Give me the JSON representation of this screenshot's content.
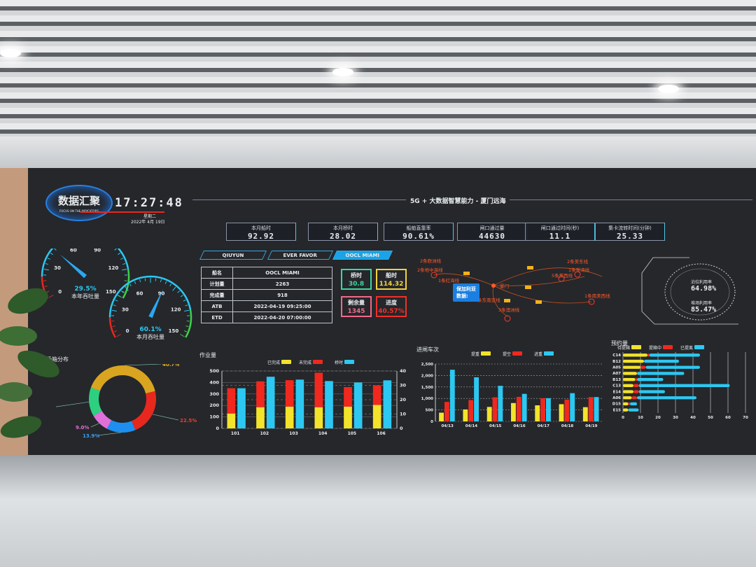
{
  "header": {
    "logo_title": "数据汇聚",
    "logo_subtitle": "FOCUS ON THE INDICATORS",
    "clock": "17:27:48",
    "weekday": "星期二",
    "date": "2022年 4月 19日",
    "title": "5G + 大数据智慧能力 - 厦门远海"
  },
  "kpis": [
    {
      "label": "本月船时",
      "value": "92.92"
    },
    {
      "label": "本月桥时",
      "value": "28.02"
    },
    {
      "label": "船舶直靠率",
      "value": "90.61%"
    },
    {
      "label": "闸口通过量",
      "value": "44630"
    },
    {
      "label": "闸口通过时间(秒)",
      "value": "11.1"
    },
    {
      "label": "集卡流转时间(分钟)",
      "value": "25.33"
    }
  ],
  "ship_tabs": [
    {
      "label": "QIUYUN",
      "active": false
    },
    {
      "label": "EVER FAVOR",
      "active": false
    },
    {
      "label": "OOCL MIAMI",
      "active": true
    }
  ],
  "ship_table": [
    {
      "k": "船名",
      "v": "OOCL MIAMI"
    },
    {
      "k": "计划量",
      "v": "2263"
    },
    {
      "k": "完成量",
      "v": "918"
    },
    {
      "k": "ATB",
      "v": "2022-04-19 09:25:00"
    },
    {
      "k": "ETD",
      "v": "2022-04-20 07:00:00"
    }
  ],
  "ship_stats": [
    {
      "label": "桥时",
      "value": "30.8",
      "color": "#3fd6a0"
    },
    {
      "label": "船时",
      "value": "114.32",
      "color": "#f3d33a"
    },
    {
      "label": "剩余量",
      "value": "1345",
      "color": "#f06a8a"
    },
    {
      "label": "进度",
      "value": "40.57%",
      "color": "#f0302a"
    }
  ],
  "route_map": {
    "hub": "厦门",
    "routes": [
      "2条欧洲线",
      "2条地中海线",
      "1条红海线",
      "2条东南亚线",
      "3条澳洲线",
      "2条美东线",
      "1条美湾线",
      "5条美西线",
      "1条南美西线"
    ],
    "tooltip": {
      "title": "保加利亚",
      "label": "数据:"
    }
  },
  "utilization": {
    "items": [
      {
        "label": "泊位利用率",
        "value": "64.98%"
      },
      {
        "label": "堆场利用率",
        "value": "85.47%"
      }
    ]
  },
  "gauges": [
    {
      "label": "本年吞吐量",
      "value": "29.5%",
      "percent": 29.5,
      "ticks": [
        "0",
        "30",
        "60",
        "90",
        "120",
        "150"
      ]
    },
    {
      "label": "本月吞吐量",
      "value": "60.1%",
      "percent": 60.1,
      "ticks": [
        "0",
        "30",
        "60",
        "90",
        "120",
        "150"
      ]
    }
  ],
  "colors": {
    "yellow": "#f3e32a",
    "red": "#f0281e",
    "cyan": "#2cc8f2",
    "orange": "#ff5a2a",
    "accent": "#1aa3e6"
  },
  "chart_data": [
    {
      "type": "pie",
      "title": "在场箱分布",
      "donut": true,
      "slices": [
        {
          "label": "40.7%",
          "value": 40.7,
          "color": "#d9a520"
        },
        {
          "label": "22.5%",
          "value": 22.5,
          "color": "#e8281e"
        },
        {
          "label": "13.9%",
          "value": 13.9,
          "color": "#1e8ff0"
        },
        {
          "label": "9.0%",
          "value": 9.0,
          "color": "#e070d8"
        },
        {
          "label": "",
          "value": 13.9,
          "color": "#2ed080"
        }
      ]
    },
    {
      "type": "bar",
      "title": "作业量",
      "categories": [
        "101",
        "102",
        "103",
        "104",
        "105",
        "106"
      ],
      "series": [
        {
          "name": "已完成",
          "stack": "a",
          "axis": "left",
          "color": "#f3e32a",
          "values": [
            130,
            185,
            190,
            185,
            190,
            205
          ]
        },
        {
          "name": "未完成",
          "stack": "a",
          "axis": "left",
          "color": "#f0281e",
          "values": [
            220,
            225,
            230,
            300,
            170,
            170
          ]
        },
        {
          "name": "桥时",
          "axis": "right",
          "color": "#2cc8f2",
          "values": [
            28,
            36,
            34,
            33,
            32,
            33.5
          ]
        }
      ],
      "ylim": [
        0,
        500
      ],
      "yticks": [
        "0",
        "100",
        "200",
        "300",
        "400",
        "500"
      ],
      "y2lim": [
        0,
        40
      ],
      "y2ticks": [
        "0",
        "10",
        "20",
        "30",
        "40"
      ],
      "legend": "top"
    },
    {
      "type": "bar",
      "title": "进闸车次",
      "categories": [
        "04/13",
        "04/14",
        "04/15",
        "04/16",
        "04/17",
        "04/18",
        "04/19"
      ],
      "series": [
        {
          "name": "提重",
          "color": "#f3e32a",
          "values": [
            380,
            520,
            630,
            800,
            700,
            750,
            620
          ]
        },
        {
          "name": "提空",
          "color": "#f0281e",
          "values": [
            850,
            930,
            1050,
            1070,
            1010,
            950,
            1060
          ]
        },
        {
          "name": "进重",
          "color": "#2cc8f2",
          "values": [
            2250,
            1920,
            1550,
            1200,
            1010,
            1230,
            1060
          ]
        }
      ],
      "ylim": [
        0,
        2500
      ],
      "yticks": [
        "0",
        "500",
        "1,000",
        "1,500",
        "2,000",
        "2,500"
      ],
      "grid": true,
      "legend": "top"
    },
    {
      "type": "bar",
      "orientation": "horizontal",
      "stacked": true,
      "title": "预约量",
      "categories": [
        "C14",
        "B12",
        "A05",
        "A07",
        "B13",
        "C13",
        "E14",
        "A06",
        "D15",
        "E15"
      ],
      "series": [
        {
          "name": "待提箱",
          "color": "#f3e32a",
          "values": [
            14,
            12,
            10,
            8,
            7,
            6,
            6,
            5,
            3,
            3
          ]
        },
        {
          "name": "提箱中",
          "color": "#f0281e",
          "values": [
            1,
            0,
            3,
            0,
            1,
            3,
            3,
            3,
            1,
            0
          ]
        },
        {
          "name": "已提离",
          "color": "#2cc8f2",
          "values": [
            29,
            20,
            31,
            27,
            15,
            52,
            15,
            34,
            4,
            6
          ]
        }
      ],
      "xlim": [
        0,
        70
      ],
      "xticks": [
        "0",
        "10",
        "20",
        "30",
        "40",
        "50",
        "60",
        "70"
      ],
      "grid": true,
      "legend": "top"
    }
  ]
}
